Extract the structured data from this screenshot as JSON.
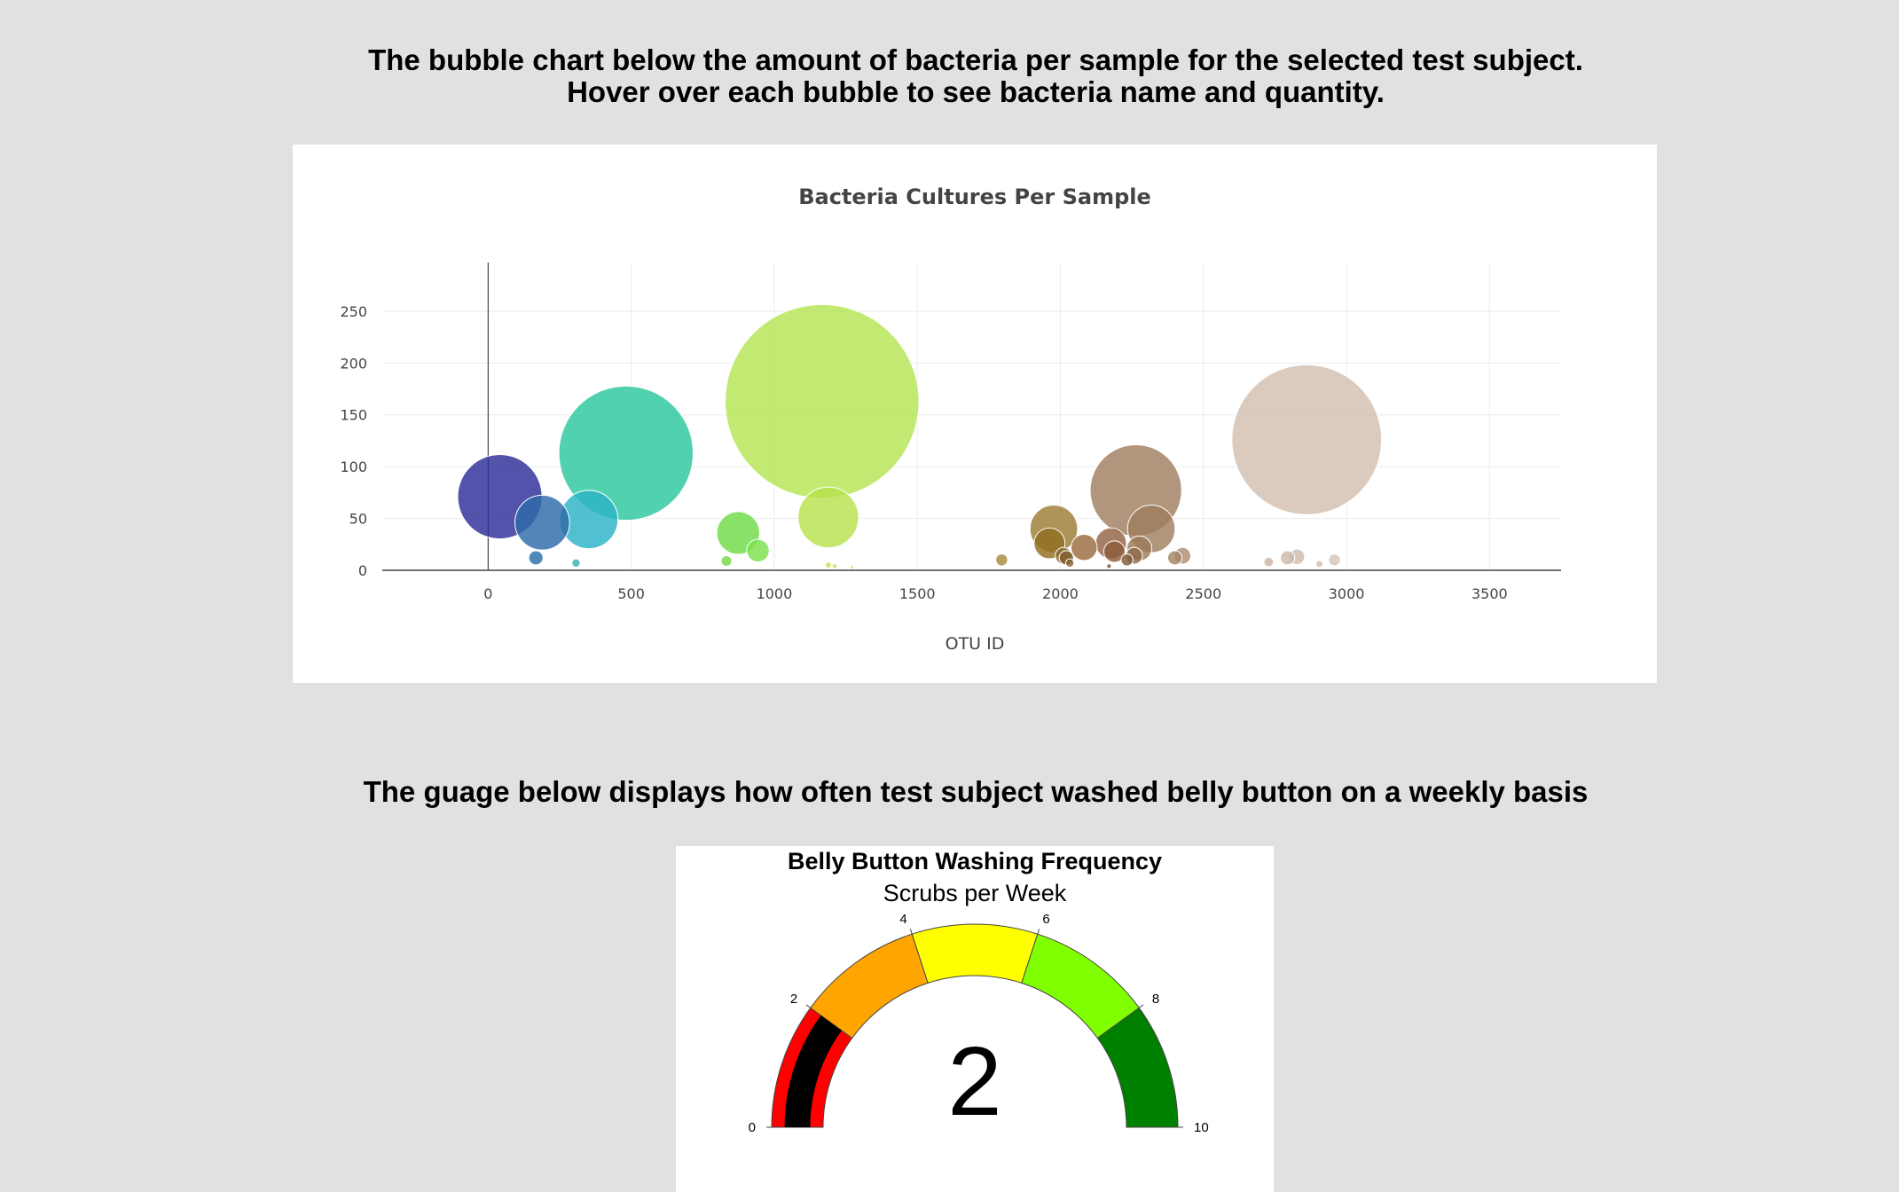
{
  "headings": {
    "bubble_line1": "The bubble chart below the amount of bacteria per sample for the selected test subject.",
    "bubble_line2": "Hover over each bubble to see bacteria name and quantity.",
    "gauge": "The guage below displays how often test subject washed belly button on a weekly basis"
  },
  "chart_data": [
    {
      "type": "scatter",
      "subtype": "bubble",
      "title": "Bacteria Cultures Per Sample",
      "xlabel": "OTU ID",
      "ylabel": "",
      "xlim": [
        -370,
        3750
      ],
      "ylim": [
        0,
        297
      ],
      "xticks": [
        0,
        500,
        1000,
        1500,
        2000,
        2500,
        3000,
        3500
      ],
      "yticks": [
        0,
        50,
        100,
        150,
        200,
        250
      ],
      "grid": true,
      "x": [
        41,
        189,
        352,
        482,
        167,
        307,
        874,
        943,
        833,
        1167,
        1189,
        1189,
        1211,
        1272,
        1795,
        1977,
        1962,
        2011,
        2083,
        2021,
        2033,
        2177,
        2264,
        2318,
        2189,
        2276,
        2258,
        2233,
        2400,
        2427,
        2170,
        2861,
        2728,
        2794,
        2827,
        2958,
        2905
      ],
      "y": [
        71,
        46,
        49,
        113,
        12,
        7,
        36,
        19,
        9,
        163,
        51,
        5,
        4,
        3,
        10,
        40,
        26,
        14,
        22,
        12,
        7,
        26,
        77,
        40,
        18,
        21,
        14,
        10,
        12,
        14,
        4,
        126,
        8,
        12,
        13,
        10,
        6
      ],
      "sizes": [
        71,
        46,
        49,
        113,
        12,
        7,
        36,
        19,
        9,
        163,
        51,
        5,
        4,
        3,
        10,
        40,
        26,
        14,
        22,
        12,
        7,
        26,
        77,
        40,
        18,
        21,
        14,
        10,
        12,
        14,
        4,
        126,
        8,
        12,
        13,
        10,
        6
      ],
      "colors": [
        "#2e2d99",
        "#2d6aa8",
        "#2bb3c7",
        "#2cc79c",
        "#2a6fa9",
        "#3aaeb5",
        "#6fdc46",
        "#7ae04c",
        "#76d94a",
        "#b5e553",
        "#b8e24e",
        "#bce04b",
        "#c4e24c",
        "#cfe253",
        "#a68b3f",
        "#9c7c34",
        "#8f6e1e",
        "#8a6a2c",
        "#9a6b3d",
        "#7e5a2a",
        "#8a6030",
        "#946344",
        "#a07f60",
        "#a07e5f",
        "#8c5d3a",
        "#9d7a58",
        "#8f6a4b",
        "#7e5a3c",
        "#a48467",
        "#ae8f76",
        "#7d5a3d",
        "#d3c0b0",
        "#c9b3a3",
        "#cdb8a8",
        "#cfbcad",
        "#d5c5b8",
        "#d0bfb3"
      ]
    },
    {
      "type": "gauge",
      "title": "Belly Button Washing Frequency",
      "subtitle": "Scrubs per Week",
      "value": 2,
      "range": [
        0,
        10
      ],
      "ticks": [
        0,
        2,
        4,
        6,
        8,
        10
      ],
      "bands": [
        {
          "from": 0,
          "to": 2,
          "color": "#ff0000"
        },
        {
          "from": 2,
          "to": 4,
          "color": "#ffa500"
        },
        {
          "from": 4,
          "to": 6,
          "color": "#ffff00"
        },
        {
          "from": 6,
          "to": 8,
          "color": "#7fff00"
        },
        {
          "from": 8,
          "to": 10,
          "color": "#008000"
        }
      ],
      "bar_color": "#000000",
      "value_label": "2"
    }
  ]
}
